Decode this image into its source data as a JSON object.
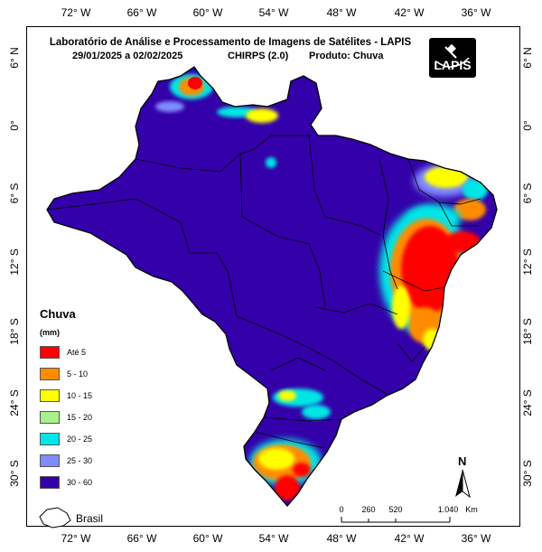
{
  "map": {
    "title": "Laboratório de Análise e Processamento de Imagens de Satélites - LAPIS",
    "subtitle_dates": "29/01/2025  a 02/02/2025",
    "subtitle_model": "CHIRPS (2.0)",
    "subtitle_product": "Produto: Chuva",
    "logo_text": "LAPIS",
    "longitude_ticks": [
      "72° W",
      "66° W",
      "60° W",
      "54° W",
      "48° W",
      "42° W",
      "36° W"
    ],
    "latitude_ticks": [
      "6° N",
      "0°",
      "6° S",
      "12° S",
      "18° S",
      "24° S",
      "30° S"
    ],
    "north_label": "N",
    "inset_label": "Brasil",
    "scale_bar": {
      "labels": [
        "0",
        "260",
        "520",
        "1.040"
      ],
      "unit": "Km"
    }
  },
  "legend": {
    "title": "Chuva",
    "unit": "(mm)",
    "classes": [
      {
        "label": "Até 5",
        "color": "#ff0000"
      },
      {
        "label": "5 - 10",
        "color": "#ff8c00"
      },
      {
        "label": "10 - 15",
        "color": "#ffff00"
      },
      {
        "label": "15 - 20",
        "color": "#a8f08c"
      },
      {
        "label": "20 - 25",
        "color": "#00e5e5"
      },
      {
        "label": "25 - 30",
        "color": "#7f8cff"
      },
      {
        "label": "30 - 60",
        "color": "#3300aa"
      }
    ]
  },
  "colors": {
    "base_fill": "#3300aa",
    "border": "#000000"
  }
}
